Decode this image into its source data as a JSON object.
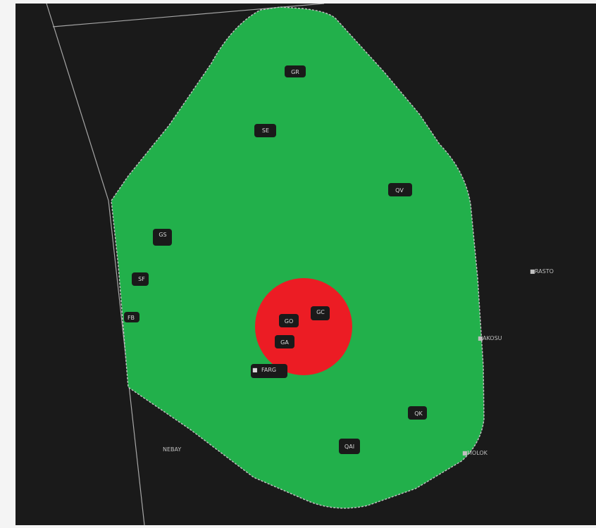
{
  "colors": {
    "background": "#1a1a1a",
    "frame": "#f4f4f4",
    "zone_fill": "#22b04b",
    "zone_border": "#bdbdbd",
    "highlight_circle": "#ec1c24",
    "label_text": "#d9d9d9",
    "fix_text": "#bfbfbf",
    "line": "#a6a6a6"
  },
  "stations": [
    {
      "id": "gr",
      "label": "GR"
    },
    {
      "id": "se",
      "label": "SE"
    },
    {
      "id": "qv",
      "label": "QV"
    },
    {
      "id": "gs",
      "label": "GS"
    },
    {
      "id": "sf",
      "label": "SF"
    },
    {
      "id": "fb",
      "label": "FB"
    },
    {
      "id": "gc",
      "label": "GC"
    },
    {
      "id": "go",
      "label": "GO"
    },
    {
      "id": "ga",
      "label": "GA"
    },
    {
      "id": "qk",
      "label": "QK"
    },
    {
      "id": "qa",
      "label": "QAI"
    }
  ],
  "fixes": [
    {
      "id": "farg",
      "label": "FARG"
    },
    {
      "id": "rasto",
      "label": "RASTO"
    },
    {
      "id": "akosu",
      "label": "AKOSU"
    },
    {
      "id": "molok",
      "label": "MOLOK"
    },
    {
      "id": "nebay",
      "label": "NEBAY"
    }
  ]
}
